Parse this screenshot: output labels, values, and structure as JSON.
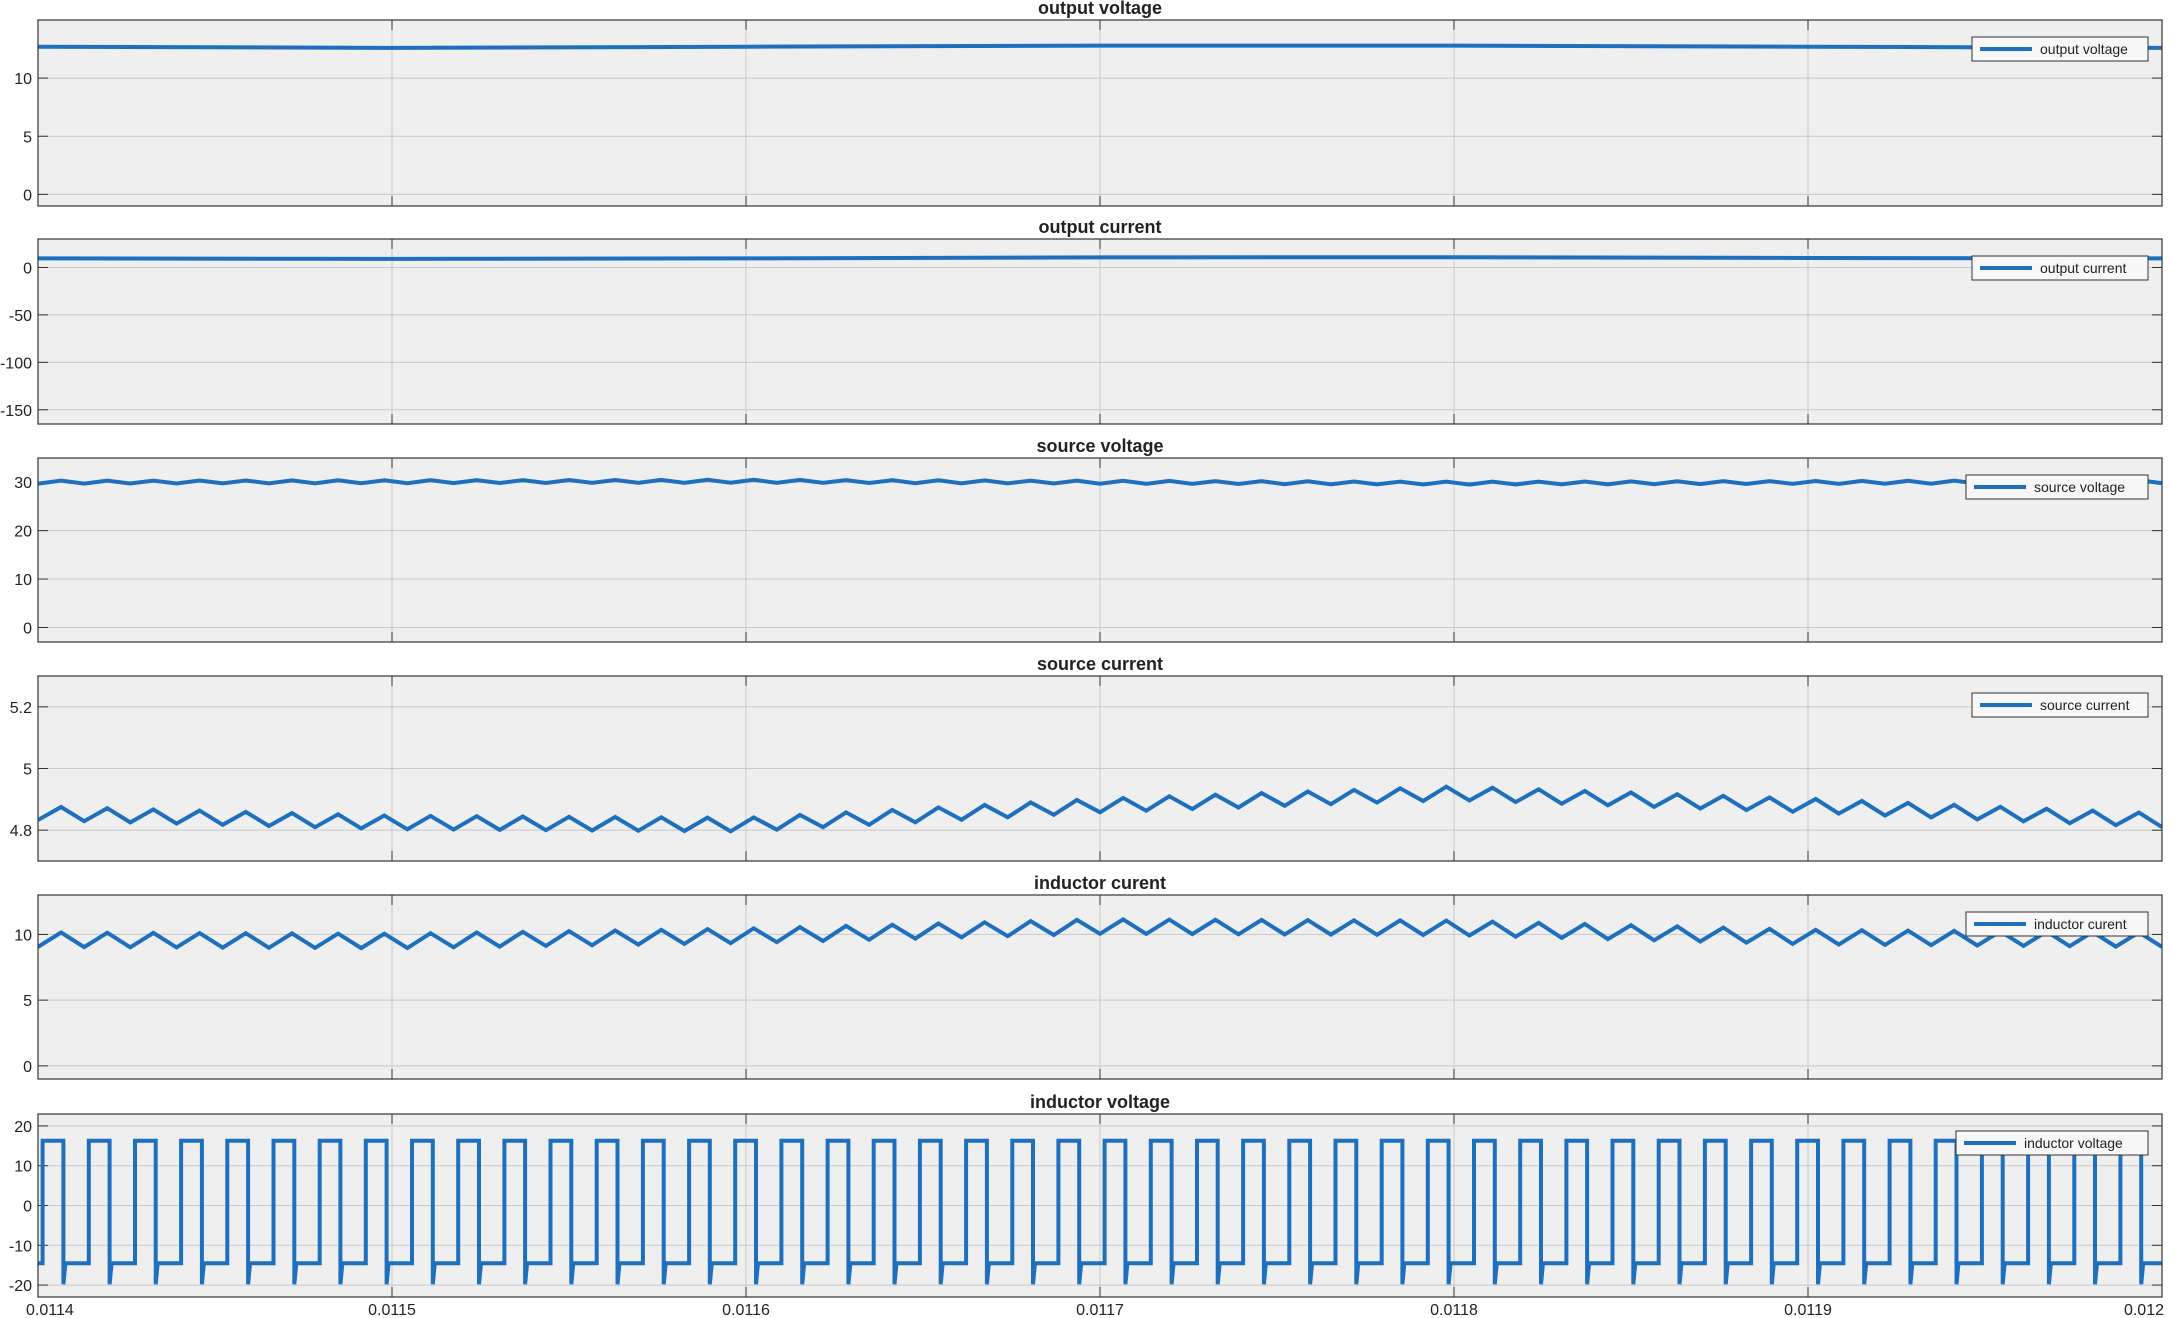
{
  "chart_data": [
    {
      "type": "line",
      "title": "output voltage",
      "ylim": [
        -1,
        15
      ],
      "yticks": [
        0,
        5,
        10
      ],
      "xlim": [
        0.0114,
        0.012
      ],
      "grid": true,
      "legend_position": "top-right",
      "series": [
        {
          "name": "output voltage",
          "x": [
            0.0114,
            0.0115,
            0.0116,
            0.0117,
            0.0118,
            0.0119,
            0.012
          ],
          "y": [
            12.7,
            12.6,
            12.7,
            12.8,
            12.8,
            12.7,
            12.6
          ]
        }
      ]
    },
    {
      "type": "line",
      "title": "output current",
      "ylim": [
        -165,
        30
      ],
      "yticks": [
        -150,
        -100,
        -50,
        0
      ],
      "xlim": [
        0.0114,
        0.012
      ],
      "grid": true,
      "legend_position": "top-right",
      "series": [
        {
          "name": "output current",
          "x": [
            0.0114,
            0.0115,
            0.0116,
            0.0117,
            0.0118,
            0.0119,
            0.012
          ],
          "y": [
            9.5,
            9.0,
            9.6,
            10.6,
            10.8,
            10.0,
            9.6
          ]
        }
      ]
    },
    {
      "type": "line",
      "title": "source voltage",
      "ylim": [
        -3,
        35
      ],
      "yticks": [
        0,
        10,
        20,
        30
      ],
      "xlim": [
        0.0114,
        0.012
      ],
      "grid": true,
      "legend_position": "top-right",
      "series": [
        {
          "name": "source voltage",
          "x": [
            0.0114,
            0.0116,
            0.0118,
            0.012
          ],
          "y": [
            30.0,
            30.2,
            29.8,
            30.1
          ],
          "ripple": 0.3,
          "cycles": 46
        }
      ]
    },
    {
      "type": "line",
      "title": "source current",
      "ylim": [
        4.7,
        5.3
      ],
      "yticks": [
        4.8,
        5,
        5.2
      ],
      "xlim": [
        0.0114,
        0.012
      ],
      "grid": true,
      "legend_position": "top-right",
      "series": [
        {
          "name": "source current",
          "x": [
            0.0114,
            0.0115,
            0.0116,
            0.0117,
            0.0118,
            0.0119,
            0.012
          ],
          "y": [
            4.855,
            4.825,
            4.818,
            4.88,
            4.92,
            4.88,
            4.832
          ],
          "ripple": 0.022,
          "cycles": 46
        }
      ]
    },
    {
      "type": "line",
      "title": "inductor curent",
      "ylim": [
        -1,
        13
      ],
      "yticks": [
        0,
        5,
        10
      ],
      "xlim": [
        0.0114,
        0.012
      ],
      "grid": true,
      "legend_position": "top-right",
      "series": [
        {
          "name": "inductor curent",
          "x": [
            0.0114,
            0.0115,
            0.0116,
            0.0117,
            0.0118,
            0.0119,
            0.012
          ],
          "y": [
            9.6,
            9.5,
            9.9,
            10.6,
            10.5,
            9.8,
            9.6
          ],
          "ripple": 0.55,
          "cycles": 46
        }
      ]
    },
    {
      "type": "line",
      "title": "inductor voltage",
      "ylim": [
        -23,
        23
      ],
      "yticks": [
        -20,
        -10,
        0,
        10,
        20
      ],
      "xlim": [
        0.0114,
        0.012
      ],
      "xticks": [
        0.0114,
        0.0115,
        0.0116,
        0.0117,
        0.0118,
        0.0119,
        0.012
      ],
      "grid": true,
      "legend_position": "top-right",
      "series": [
        {
          "name": "inductor voltage",
          "waveform": "square",
          "high": 16.3,
          "low": -14.5,
          "spike": -19.8,
          "cycles": 46
        }
      ]
    }
  ],
  "colors": {
    "line": "#1f6fbf",
    "plot_bg": "#efefef",
    "grid": "#c8c8c8",
    "axis": "#333333",
    "legend_bg": "#f7f7f7"
  }
}
